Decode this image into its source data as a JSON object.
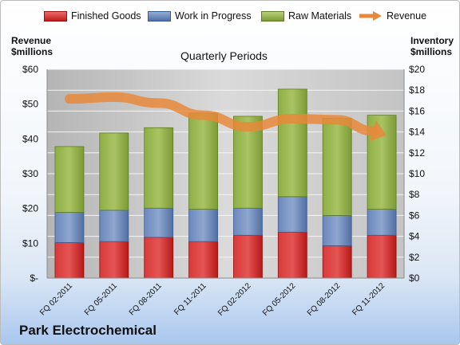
{
  "company": "Park Electrochemical",
  "legend": {
    "finished_goods": "Finished Goods",
    "work_in_progress": "Work in Progress",
    "raw_materials": "Raw Materials",
    "revenue": "Revenue"
  },
  "axes": {
    "left_title_1": "Revenue",
    "left_title_2": "$millions",
    "right_title_1": "Inventory",
    "right_title_2": "$millions"
  },
  "colors": {
    "finished_goods": "#c41d1d",
    "work_in_progress": "#4e6fa7",
    "raw_materials": "#7c9c34",
    "revenue": "#e8883a",
    "plot_background": "#c8c8c8"
  },
  "chart_data": {
    "type": "bar",
    "title": "Quarterly Periods",
    "stacked": true,
    "categories": [
      "FQ 02-2011",
      "FQ 05-2011",
      "FQ 08-2011",
      "FQ 11-2011",
      "FQ 02-2012",
      "FQ 05-2012",
      "FQ 08-2012",
      "FQ 11-2012"
    ],
    "series": [
      {
        "name": "Finished Goods",
        "axis": "right",
        "values": [
          3.4,
          3.5,
          3.9,
          3.5,
          4.1,
          4.4,
          3.1,
          4.1
        ]
      },
      {
        "name": "Work in Progress",
        "axis": "right",
        "values": [
          2.9,
          3.0,
          2.8,
          3.1,
          2.6,
          3.4,
          2.9,
          2.5
        ]
      },
      {
        "name": "Raw Materials",
        "axis": "right",
        "values": [
          6.3,
          7.4,
          7.7,
          9.2,
          8.8,
          10.3,
          9.3,
          9.0
        ]
      },
      {
        "name": "Revenue",
        "axis": "left",
        "type": "line",
        "values": [
          51.5,
          52.0,
          50.3,
          46.8,
          43.5,
          45.8,
          45.5,
          41.5
        ]
      }
    ],
    "y_left": {
      "min": 0,
      "max": 60,
      "step": 10,
      "tick_labels": [
        "$-",
        "$10",
        "$20",
        "$30",
        "$40",
        "$50",
        "$60"
      ]
    },
    "y_right": {
      "min": 0,
      "max": 20,
      "step": 2,
      "tick_labels": [
        "$0",
        "$2",
        "$4",
        "$6",
        "$8",
        "$10",
        "$12",
        "$14",
        "$16",
        "$18",
        "$20"
      ]
    },
    "grid": true,
    "legend_position": "top"
  }
}
